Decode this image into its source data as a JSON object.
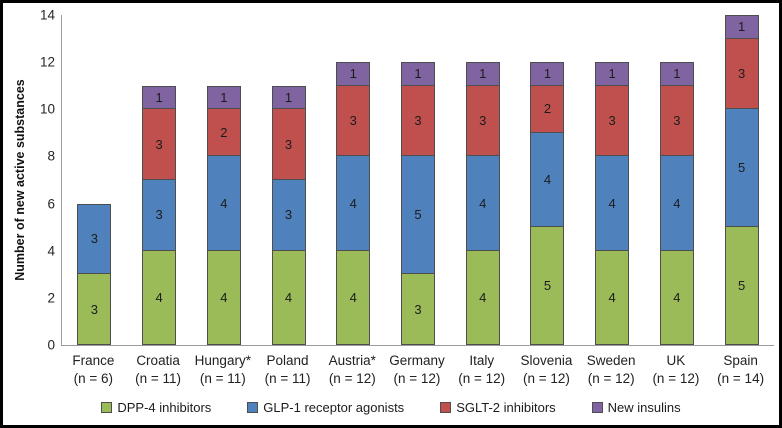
{
  "chart_data": {
    "type": "bar",
    "stacked": true,
    "title": "",
    "xlabel": "",
    "ylabel": "Number of new active substances",
    "ylim": [
      0,
      14
    ],
    "yticks": [
      0,
      2,
      4,
      6,
      8,
      10,
      12,
      14
    ],
    "grid": false,
    "legend_position": "bottom",
    "segment_labels_shown": true,
    "categories": [
      {
        "label": "France",
        "sub": "(n = 6)"
      },
      {
        "label": "Croatia",
        "sub": "(n = 11)"
      },
      {
        "label": "Hungary*",
        "sub": "(n = 11)"
      },
      {
        "label": "Poland",
        "sub": "(n = 11)"
      },
      {
        "label": "Austria*",
        "sub": "(n = 12)"
      },
      {
        "label": "Germany",
        "sub": "(n = 12)"
      },
      {
        "label": "Italy",
        "sub": "(n = 12)"
      },
      {
        "label": "Slovenia",
        "sub": "(n = 12)"
      },
      {
        "label": "Sweden",
        "sub": "(n = 12)"
      },
      {
        "label": "UK",
        "sub": "(n = 12)"
      },
      {
        "label": "Spain",
        "sub": "(n = 14)"
      }
    ],
    "series": [
      {
        "name": "DPP-4 inhibitors",
        "color": "#9BBB59",
        "values": [
          3,
          4,
          4,
          4,
          4,
          3,
          4,
          5,
          4,
          4,
          5
        ]
      },
      {
        "name": "GLP-1 receptor agonists",
        "color": "#4F81BD",
        "values": [
          3,
          3,
          4,
          3,
          4,
          5,
          4,
          4,
          4,
          4,
          5
        ]
      },
      {
        "name": "SGLT-2 inhibitors",
        "color": "#C0504D",
        "values": [
          0,
          3,
          2,
          3,
          3,
          3,
          3,
          2,
          3,
          3,
          3
        ]
      },
      {
        "name": "New insulins",
        "color": "#8064A2",
        "values": [
          0,
          1,
          1,
          1,
          1,
          1,
          1,
          1,
          1,
          1,
          1
        ]
      }
    ],
    "colors": {
      "segment_border": "#4e4e4e",
      "axis_line": "#9b9b9b",
      "frame_border": "#000000"
    }
  }
}
